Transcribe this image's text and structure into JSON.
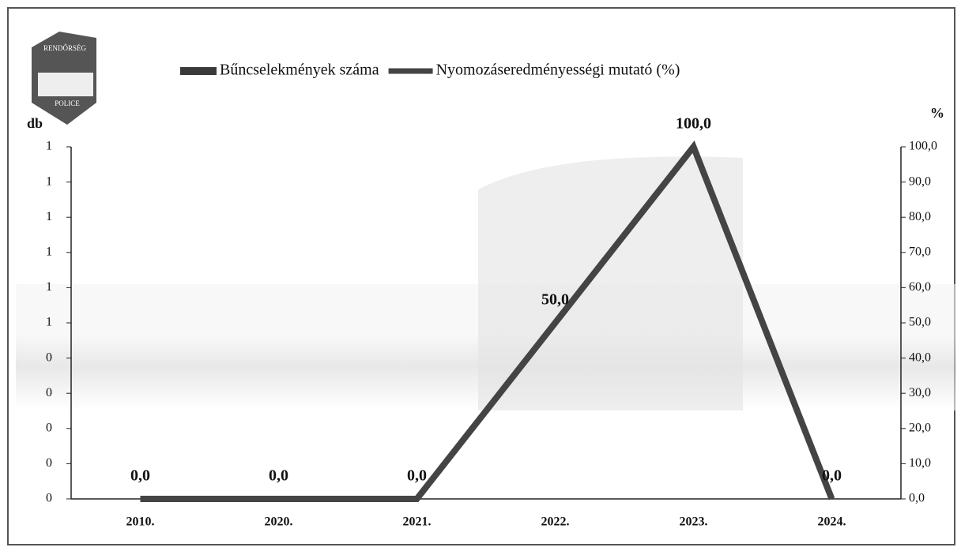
{
  "logo": {
    "top": "RENDŐRSÉG",
    "bottom": "POLICE"
  },
  "chart_data": {
    "type": "bar-line",
    "ylabel": "db",
    "y2label": "%",
    "categories": [
      "2010.",
      "2020.",
      "2021.",
      "2022.",
      "2023.",
      "2024."
    ],
    "series": [
      {
        "name": "Bűncselekmények száma",
        "type": "bar",
        "color": "#3a3a3a",
        "values": [
          0,
          0,
          0,
          0,
          0,
          0
        ]
      },
      {
        "name": "Nyomozáseredményességi mutató (%)",
        "type": "line",
        "axis": "y2",
        "color": "#444444",
        "values": [
          0,
          0,
          0,
          50,
          100,
          0
        ],
        "value_labels": [
          "0,0",
          "0,0",
          "0,0",
          "50,0",
          "100,0",
          "0,0"
        ]
      }
    ],
    "ylim": [
      0,
      1
    ],
    "yticks": [
      0,
      {
        "value": 0.1,
        "label": "0"
      },
      {
        "value": 0.2,
        "label": "0"
      },
      {
        "value": 0.3,
        "label": "0"
      },
      {
        "value": 0.4,
        "label": "0"
      },
      {
        "value": 0.5,
        "label": "1"
      },
      {
        "value": 0.6,
        "label": "1"
      },
      {
        "value": 0.7,
        "label": "1"
      },
      {
        "value": 0.8,
        "label": "1"
      },
      {
        "value": 0.9,
        "label": "1"
      },
      1
    ],
    "y2lim": [
      0,
      100
    ],
    "y2ticks": [
      {
        "value": 0,
        "label": "0,0"
      },
      {
        "value": 10,
        "label": "10,0"
      },
      {
        "value": 20,
        "label": "20,0"
      },
      {
        "value": 30,
        "label": "30,0"
      },
      {
        "value": 40,
        "label": "40,0"
      },
      {
        "value": 50,
        "label": "50,0"
      },
      {
        "value": 60,
        "label": "60,0"
      },
      {
        "value": 70,
        "label": "70,0"
      },
      {
        "value": 80,
        "label": "80,0"
      },
      {
        "value": 90,
        "label": "90,0"
      },
      {
        "value": 100,
        "label": "100,0"
      }
    ],
    "legend": "top"
  }
}
